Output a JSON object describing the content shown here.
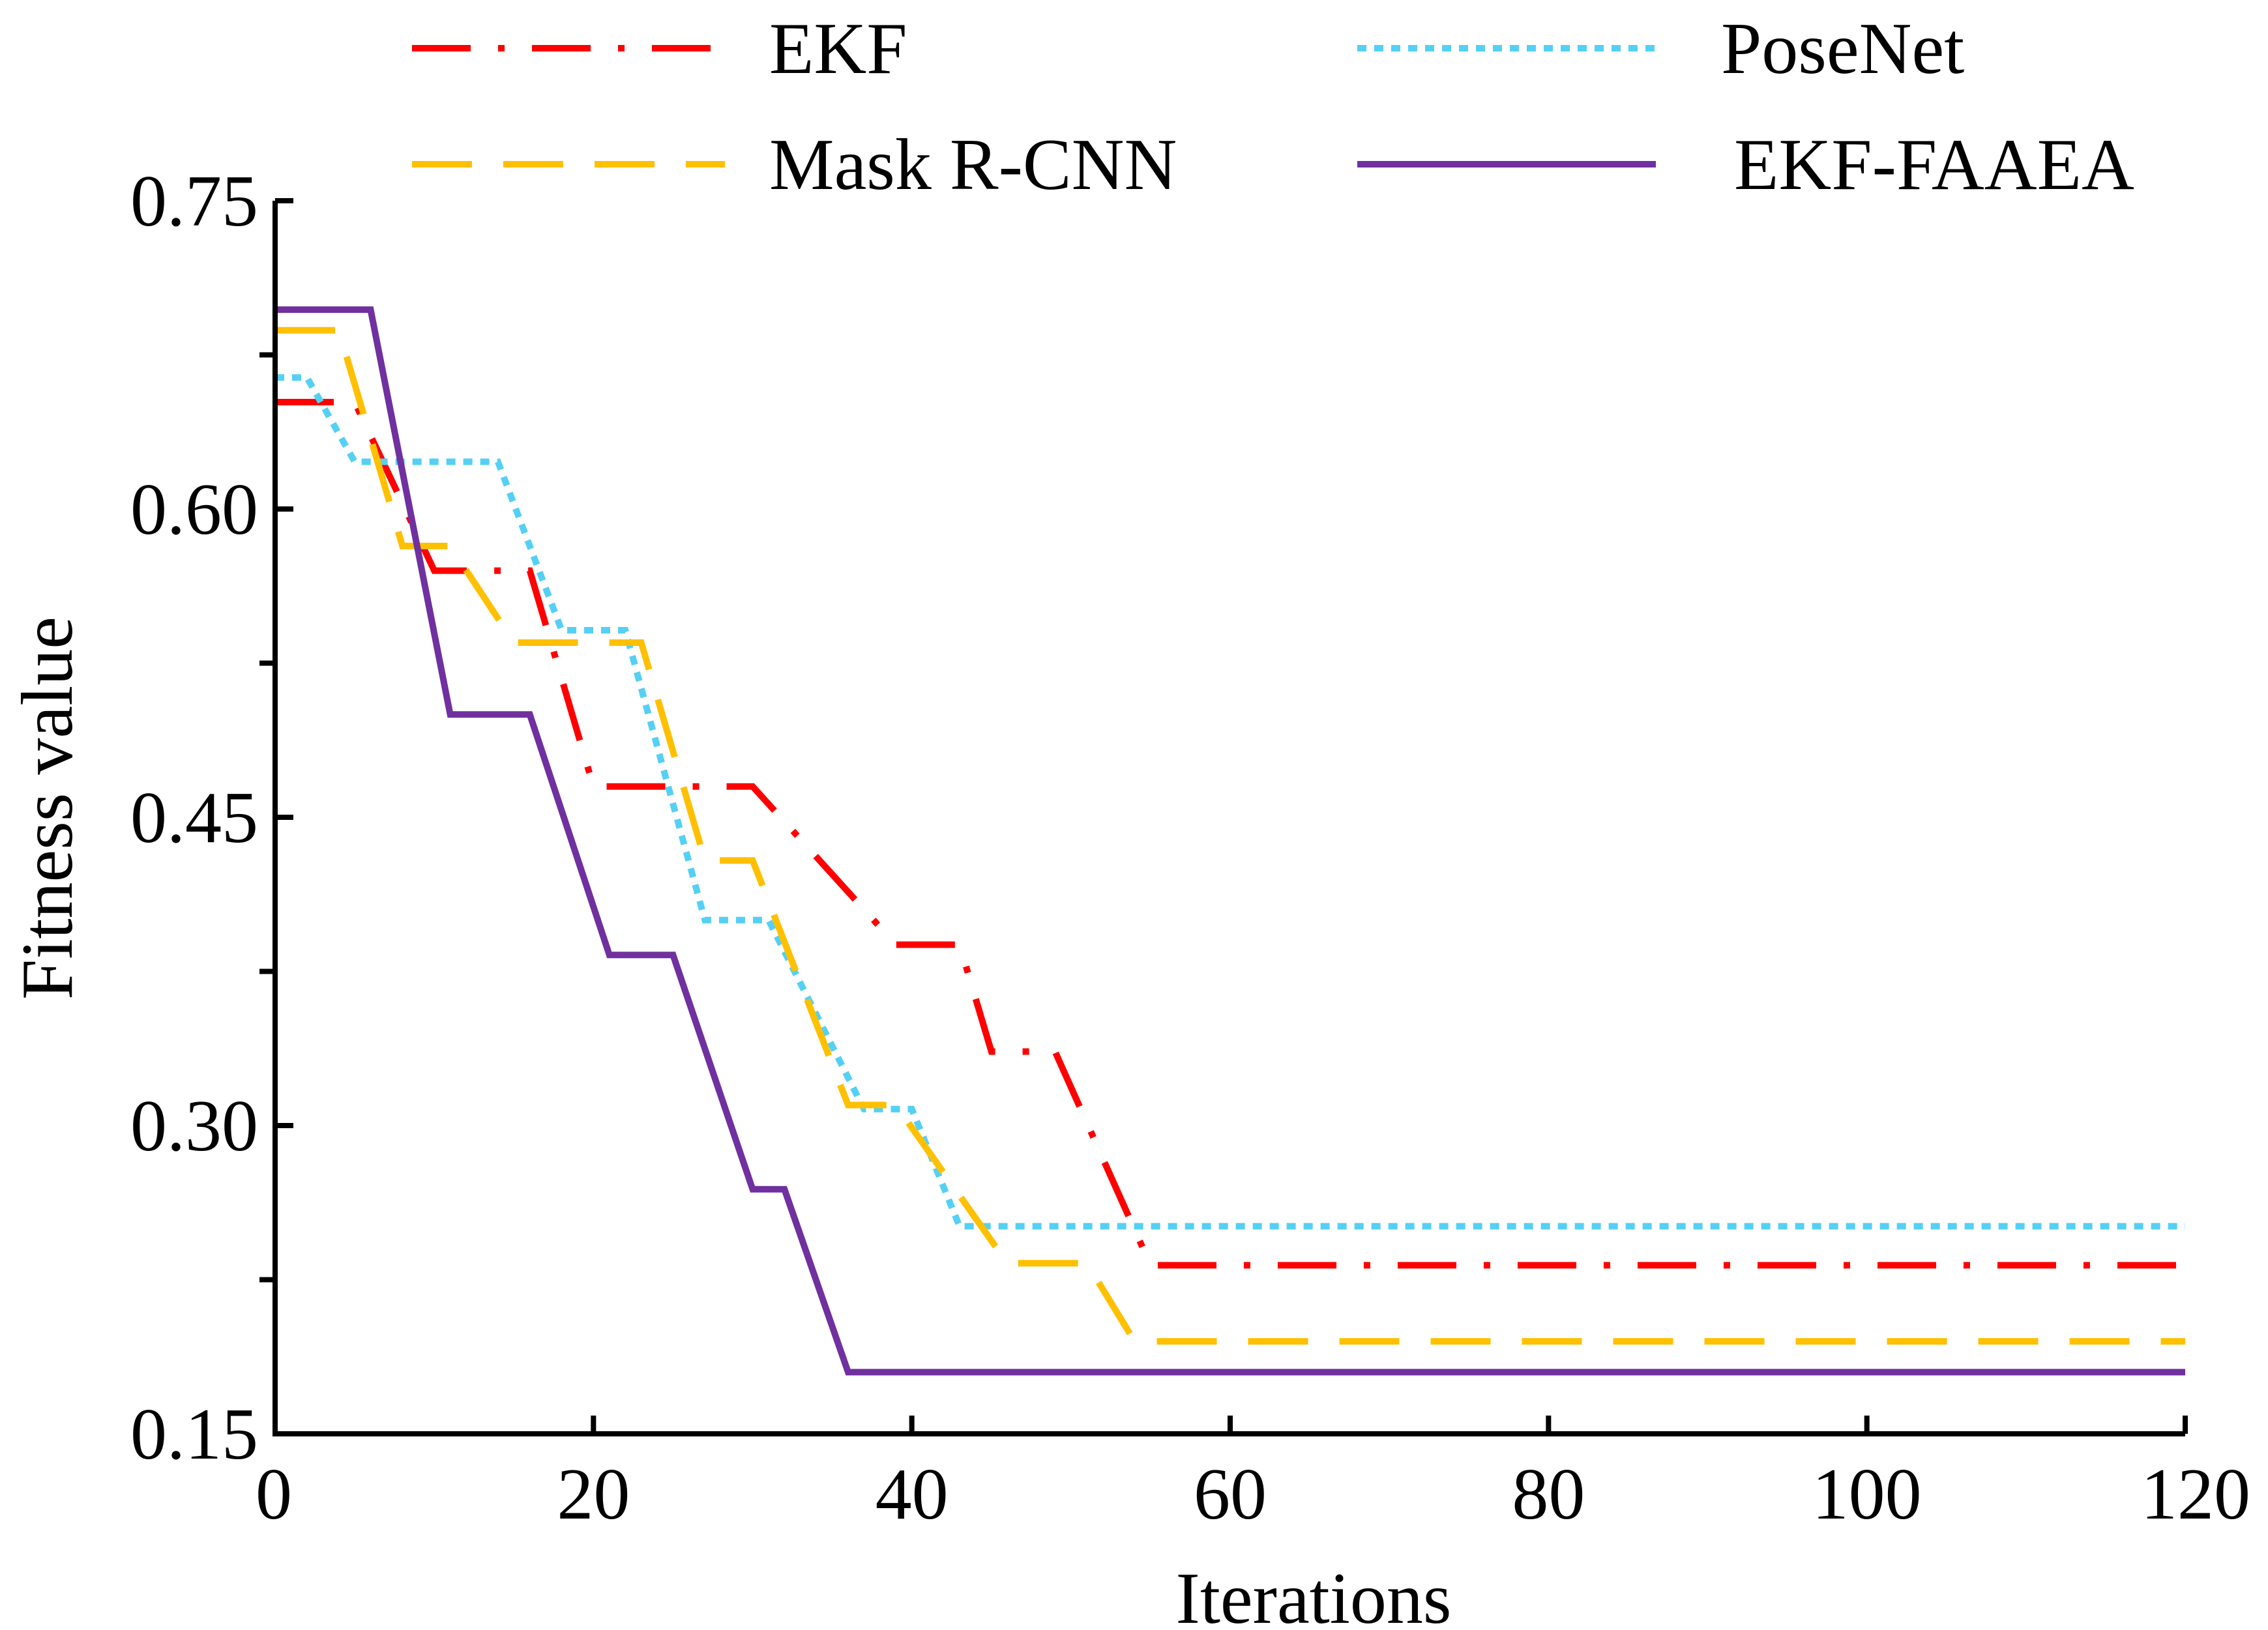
{
  "chart_data": {
    "type": "line",
    "title": "",
    "xlabel": "Iterations",
    "ylabel": "Fitness value",
    "xlim": [
      0,
      120
    ],
    "ylim": [
      0.15,
      0.75
    ],
    "x_ticks": [
      0,
      20,
      40,
      60,
      80,
      100,
      120
    ],
    "x_tick_labels": [
      "0",
      "20",
      "40",
      "60",
      "80",
      "100",
      "120"
    ],
    "y_ticks": [
      0.15,
      0.3,
      0.45,
      0.6,
      0.75
    ],
    "y_tick_labels": [
      "0.15",
      "0.30",
      "0.45",
      "0.60",
      "0.75"
    ],
    "y_minor_ticks": [
      0.225,
      0.375,
      0.525,
      0.675
    ],
    "grid": false,
    "legend_position": "top",
    "series": [
      {
        "name": "EKF",
        "color": "#ff0000",
        "style": "dash-dot",
        "x": [
          0,
          5,
          10,
          16,
          20,
          25,
          30,
          39,
          43,
          45,
          49,
          55,
          120
        ],
        "y": [
          0.652,
          0.652,
          0.57,
          0.57,
          0.465,
          0.465,
          0.465,
          0.388,
          0.388,
          0.336,
          0.336,
          0.232,
          0.232
        ]
      },
      {
        "name": "PoseNet",
        "color": "#55d0f5",
        "style": "dotted",
        "x": [
          0,
          2,
          5,
          14,
          18,
          22,
          27,
          31,
          37,
          40,
          43,
          120
        ],
        "y": [
          0.664,
          0.664,
          0.623,
          0.623,
          0.541,
          0.541,
          0.4,
          0.4,
          0.308,
          0.308,
          0.251,
          0.251
        ]
      },
      {
        "name": "Mask R-CNN",
        "color": "#ffc000",
        "style": "dashed",
        "x": [
          0,
          4,
          8,
          11,
          15,
          23,
          27,
          30,
          36,
          39,
          46,
          51,
          54,
          120
        ],
        "y": [
          0.687,
          0.687,
          0.582,
          0.582,
          0.535,
          0.535,
          0.429,
          0.429,
          0.31,
          0.31,
          0.233,
          0.233,
          0.195,
          0.195
        ]
      },
      {
        "name": "EKF-FAAEA",
        "color": "#7030a0",
        "style": "solid",
        "x": [
          0,
          6,
          11,
          16,
          21,
          25,
          30,
          32,
          36,
          120
        ],
        "y": [
          0.697,
          0.697,
          0.5,
          0.5,
          0.383,
          0.383,
          0.269,
          0.269,
          0.18,
          0.18
        ]
      }
    ]
  }
}
